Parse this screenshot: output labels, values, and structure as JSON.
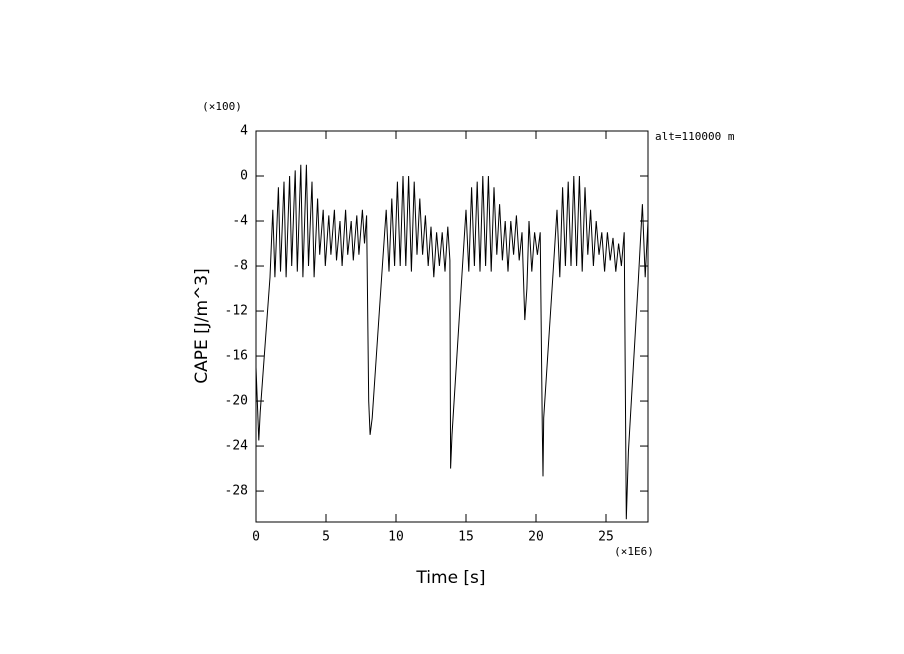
{
  "chart_data": {
    "type": "line",
    "xlabel": "Time [s]",
    "ylabel": "CAPE [J/m^3]",
    "x_multiplier": "(×1E6)",
    "y_multiplier": "(×100)",
    "annotation": "alt=110000 m",
    "xlim": [
      0,
      28
    ],
    "ylim": [
      -30.75,
      4
    ],
    "xticks": [
      0,
      5,
      10,
      15,
      20,
      25
    ],
    "yticks": [
      4,
      0,
      -4,
      -8,
      -12,
      -16,
      -20,
      -24,
      -28
    ],
    "color": "#000000",
    "x": [
      0,
      0.2,
      0.3,
      1.0,
      1.2,
      1.35,
      1.6,
      1.75,
      2.0,
      2.15,
      2.4,
      2.55,
      2.8,
      2.95,
      3.2,
      3.35,
      3.6,
      3.75,
      4.0,
      4.15,
      4.4,
      4.55,
      4.8,
      4.95,
      5.2,
      5.35,
      5.6,
      5.75,
      6.0,
      6.15,
      6.4,
      6.55,
      6.8,
      6.95,
      7.2,
      7.35,
      7.6,
      7.75,
      7.9,
      8.05,
      8.15,
      8.3,
      9.0,
      9.3,
      9.5,
      9.7,
      9.9,
      10.1,
      10.3,
      10.5,
      10.7,
      10.9,
      11.1,
      11.3,
      11.5,
      11.7,
      11.9,
      12.1,
      12.3,
      12.5,
      12.7,
      12.9,
      13.1,
      13.3,
      13.5,
      13.7,
      13.85,
      13.9,
      14.0,
      14.7,
      15.0,
      15.2,
      15.4,
      15.6,
      15.8,
      16.0,
      16.2,
      16.4,
      16.6,
      16.8,
      17.0,
      17.2,
      17.4,
      17.6,
      17.8,
      18.0,
      18.2,
      18.4,
      18.6,
      18.8,
      19.0,
      19.2,
      19.35,
      19.5,
      19.7,
      19.9,
      20.1,
      20.3,
      20.45,
      20.5,
      20.55,
      21.2,
      21.5,
      21.7,
      21.9,
      22.1,
      22.3,
      22.5,
      22.7,
      22.9,
      23.1,
      23.3,
      23.5,
      23.7,
      23.9,
      24.1,
      24.3,
      24.5,
      24.7,
      24.9,
      25.1,
      25.3,
      25.5,
      25.7,
      25.9,
      26.1,
      26.3,
      26.45,
      26.6,
      27.3,
      27.6,
      27.8,
      28.0
    ],
    "values": [
      -17,
      -23.5,
      -21,
      -9,
      -3,
      -9,
      -1,
      -8.5,
      -0.5,
      -9,
      0,
      -8,
      0.5,
      -8.5,
      1,
      -9,
      1,
      -8,
      -0.5,
      -9,
      -2,
      -7,
      -3,
      -8,
      -3.5,
      -7,
      -3,
      -7.5,
      -4,
      -8,
      -3,
      -7,
      -4,
      -7.5,
      -3.5,
      -7,
      -3,
      -6,
      -3.5,
      -20,
      -23,
      -21.5,
      -8.5,
      -3,
      -8.5,
      -2,
      -8,
      -0.5,
      -8,
      0,
      -8,
      0,
      -8.5,
      -0.5,
      -7,
      -2,
      -7,
      -3.5,
      -8,
      -4.5,
      -9,
      -5,
      -8,
      -5,
      -8.5,
      -4.5,
      -7.5,
      -26,
      -23,
      -9,
      -3,
      -8.5,
      -1,
      -8,
      -0.5,
      -8.5,
      0,
      -8,
      0,
      -8.5,
      -1,
      -7,
      -2.5,
      -7.5,
      -4,
      -8.5,
      -4,
      -7,
      -3.5,
      -7.5,
      -5,
      -12.8,
      -10,
      -4,
      -8.5,
      -5,
      -7,
      -5,
      -22.5,
      -26.7,
      -21.5,
      -9,
      -3,
      -9,
      -1,
      -8,
      -0.5,
      -8,
      0,
      -8,
      0,
      -8.5,
      -1,
      -7,
      -3,
      -8,
      -4,
      -7,
      -5,
      -8.5,
      -5,
      -7.5,
      -5.5,
      -8.5,
      -6,
      -8,
      -5,
      -30.5,
      -24.5,
      -9.5,
      -2.5,
      -9,
      -4
    ]
  }
}
